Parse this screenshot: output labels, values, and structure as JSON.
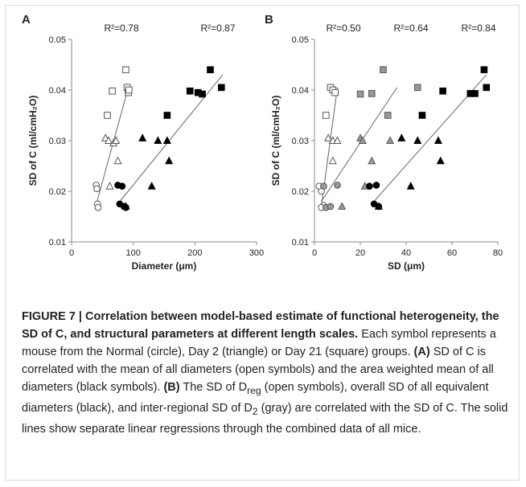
{
  "chart_data": [
    {
      "type": "scatter",
      "panel": "A",
      "xlabel": "Diameter (μm)",
      "ylabel": "SD of C (ml/cmH₂O)",
      "xlim": [
        0,
        300
      ],
      "xticks": [
        0,
        100,
        200,
        300
      ],
      "ylim": [
        0.01,
        0.05
      ],
      "yticks": [
        0.01,
        0.02,
        0.03,
        0.04,
        0.05
      ],
      "annotations": [
        "R²=0.78",
        "R²=0.87"
      ],
      "series": [
        {
          "marker": "circle",
          "color": "#555",
          "fill": "#fff",
          "x": [
            40,
            41,
            42,
            43
          ],
          "values": [
            0.0212,
            0.0205,
            0.0175,
            0.0168
          ]
        },
        {
          "marker": "triangle",
          "color": "#555",
          "fill": "#fff",
          "x": [
            55,
            60,
            68,
            72,
            75,
            62
          ],
          "values": [
            0.0305,
            0.03,
            0.0295,
            0.03,
            0.026,
            0.021
          ]
        },
        {
          "marker": "square",
          "color": "#555",
          "fill": "#fff",
          "x": [
            58,
            66,
            88,
            90,
            92,
            93
          ],
          "values": [
            0.035,
            0.0398,
            0.044,
            0.0405,
            0.0395,
            0.04
          ]
        },
        {
          "marker": "circle",
          "color": "#000",
          "fill": "#000",
          "x": [
            75,
            82,
            78,
            85,
            88
          ],
          "values": [
            0.0212,
            0.021,
            0.0175,
            0.017,
            0.0168
          ]
        },
        {
          "marker": "triangle",
          "color": "#000",
          "fill": "#000",
          "x": [
            88,
            115,
            130,
            140,
            155,
            158
          ],
          "values": [
            0.017,
            0.0305,
            0.021,
            0.03,
            0.03,
            0.026
          ]
        },
        {
          "marker": "square",
          "color": "#000",
          "fill": "#000",
          "x": [
            155,
            192,
            205,
            212,
            225,
            243
          ],
          "values": [
            0.035,
            0.0398,
            0.0395,
            0.0392,
            0.044,
            0.0405
          ]
        }
      ],
      "lines": [
        {
          "color": "#666",
          "x": [
            38,
            92
          ],
          "values": [
            0.0165,
            0.0405
          ]
        },
        {
          "color": "#666",
          "x": [
            75,
            245
          ],
          "values": [
            0.0175,
            0.043
          ]
        }
      ]
    },
    {
      "type": "scatter",
      "panel": "B",
      "xlabel": "SD (μm)",
      "ylabel": "SD of C (ml/cmH₂O)",
      "xlim": [
        0,
        80
      ],
      "xticks": [
        0,
        20,
        40,
        60,
        80
      ],
      "ylim": [
        0.01,
        0.05
      ],
      "yticks": [
        0.01,
        0.02,
        0.03,
        0.04,
        0.05
      ],
      "annotations": [
        "R²=0.50",
        "R²=0.64",
        "R²=0.84"
      ],
      "series": [
        {
          "marker": "circle",
          "color": "#555",
          "fill": "#fff",
          "x": [
            2,
            3,
            4,
            3
          ],
          "values": [
            0.021,
            0.02,
            0.0172,
            0.0168
          ]
        },
        {
          "marker": "triangle",
          "color": "#555",
          "fill": "#fff",
          "x": [
            6,
            8,
            10,
            8
          ],
          "values": [
            0.0305,
            0.03,
            0.03,
            0.026
          ]
        },
        {
          "marker": "square",
          "color": "#555",
          "fill": "#fff",
          "x": [
            5,
            7,
            8,
            9
          ],
          "values": [
            0.035,
            0.0405,
            0.04,
            0.0395
          ]
        },
        {
          "marker": "circle",
          "color": "#555",
          "fill": "#999",
          "x": [
            4,
            5,
            10,
            7
          ],
          "values": [
            0.021,
            0.0168,
            0.0212,
            0.017
          ]
        },
        {
          "marker": "triangle",
          "color": "#555",
          "fill": "#999",
          "x": [
            12,
            20,
            21,
            22,
            25,
            33
          ],
          "values": [
            0.017,
            0.0305,
            0.03,
            0.021,
            0.026,
            0.03
          ]
        },
        {
          "marker": "square",
          "color": "#555",
          "fill": "#999",
          "x": [
            20,
            25,
            30,
            32,
            45
          ],
          "values": [
            0.0392,
            0.0393,
            0.044,
            0.035,
            0.0405
          ]
        },
        {
          "marker": "circle",
          "color": "#000",
          "fill": "#000",
          "x": [
            24,
            27,
            26,
            28
          ],
          "values": [
            0.021,
            0.0212,
            0.0175,
            0.017
          ]
        },
        {
          "marker": "triangle",
          "color": "#000",
          "fill": "#000",
          "x": [
            28,
            38,
            42,
            45,
            54,
            55
          ],
          "values": [
            0.017,
            0.0305,
            0.021,
            0.03,
            0.03,
            0.026
          ]
        },
        {
          "marker": "square",
          "color": "#000",
          "fill": "#000",
          "x": [
            47,
            56,
            68,
            70,
            74,
            75
          ],
          "values": [
            0.035,
            0.0398,
            0.0393,
            0.0393,
            0.044,
            0.0405
          ]
        }
      ],
      "lines": [
        {
          "color": "#666",
          "x": [
            3,
            10
          ],
          "values": [
            0.017,
            0.0405
          ]
        },
        {
          "color": "#666",
          "x": [
            3,
            36
          ],
          "values": [
            0.018,
            0.0405
          ]
        },
        {
          "color": "#666",
          "x": [
            25,
            75
          ],
          "values": [
            0.0175,
            0.043
          ]
        }
      ]
    }
  ],
  "caption": [
    {
      "style": "b",
      "text": "FIGURE 7 | Correlation between model-based estimate of functional heterogeneity, the SD of C, and structural parameters at different length scales."
    },
    {
      "style": "n",
      "text": " Each symbol represents a mouse from the Normal (circle), Day 2 (triangle) or Day 21 (square) groups. "
    },
    {
      "style": "b",
      "text": "(A)"
    },
    {
      "style": "n",
      "text": " SD of C is correlated with the mean of all diameters (open symbols) and the area weighted mean of all diameters (black symbols). "
    },
    {
      "style": "b",
      "text": "(B)"
    },
    {
      "style": "n",
      "text": " The SD of D"
    },
    {
      "style": "sub",
      "text": "reg"
    },
    {
      "style": "n",
      "text": " (open symbols), overall SD of all equivalent diameters (black), and inter-regional SD of D"
    },
    {
      "style": "sub",
      "text": "2"
    },
    {
      "style": "n",
      "text": " (gray) are correlated with the SD of C. The solid lines show separate linear regressions through the combined data of all mice."
    }
  ]
}
